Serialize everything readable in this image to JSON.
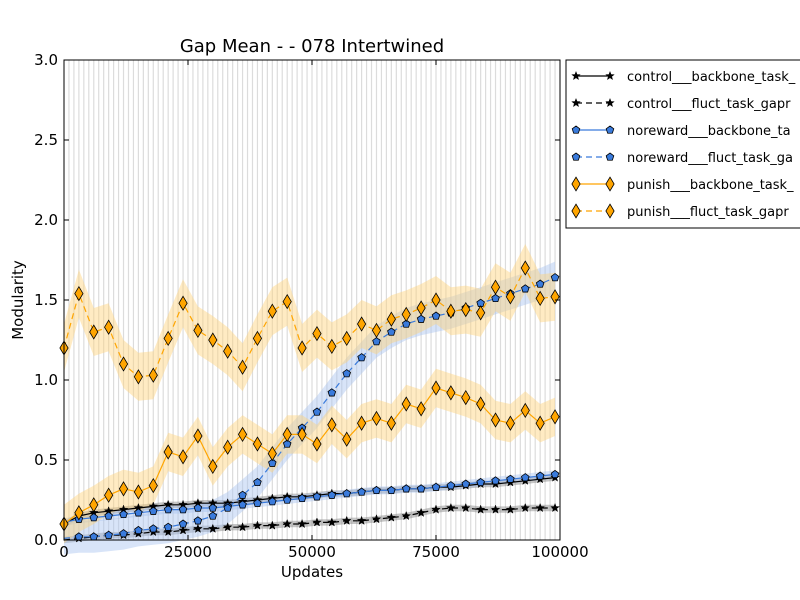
{
  "chart_data": {
    "type": "line",
    "title": "Gap Mean -  - 078 Intertwined",
    "xlabel": "Updates",
    "ylabel": "Modularity",
    "xlim": [
      0,
      100000
    ],
    "ylim": [
      0.0,
      3.0
    ],
    "x_ticks": [
      "0",
      "25000",
      "50000",
      "75000",
      "100000"
    ],
    "y_ticks": [
      "0.0",
      "0.5",
      "1.0",
      "1.5",
      "2.0",
      "2.5",
      "3.0"
    ],
    "grid": "vertical lines every 1000 updates",
    "legend_position": "outside-right-top",
    "x": [
      0,
      3000,
      6000,
      9000,
      12000,
      15000,
      18000,
      21000,
      24000,
      27000,
      30000,
      33000,
      36000,
      39000,
      42000,
      45000,
      48000,
      51000,
      54000,
      57000,
      60000,
      63000,
      66000,
      69000,
      72000,
      75000,
      78000,
      81000,
      84000,
      87000,
      90000,
      93000,
      96000,
      99000
    ],
    "series": [
      {
        "name": "control___backbone_task_",
        "color": "#000000",
        "band_color": "#808080",
        "marker": "star",
        "dash": "solid",
        "values": [
          0.1,
          0.15,
          0.17,
          0.18,
          0.19,
          0.2,
          0.21,
          0.22,
          0.22,
          0.23,
          0.23,
          0.23,
          0.24,
          0.25,
          0.26,
          0.27,
          0.27,
          0.28,
          0.29,
          0.29,
          0.3,
          0.31,
          0.31,
          0.32,
          0.32,
          0.33,
          0.33,
          0.34,
          0.35,
          0.35,
          0.36,
          0.37,
          0.38,
          0.39
        ],
        "band": 0.02
      },
      {
        "name": "control___fluct_task_gapr",
        "color": "#000000",
        "band_color": "#808080",
        "marker": "star",
        "dash": "dashed",
        "values": [
          0.0,
          0.01,
          0.02,
          0.03,
          0.03,
          0.04,
          0.05,
          0.05,
          0.06,
          0.07,
          0.07,
          0.08,
          0.08,
          0.09,
          0.09,
          0.1,
          0.1,
          0.11,
          0.11,
          0.12,
          0.12,
          0.13,
          0.14,
          0.15,
          0.17,
          0.19,
          0.2,
          0.2,
          0.19,
          0.19,
          0.19,
          0.2,
          0.2,
          0.2
        ],
        "band": 0.02
      },
      {
        "name": "noreward___backbone_ta",
        "color": "#3a7bdc",
        "band_color": "#a8c4f0",
        "marker": "pentagon",
        "dash": "solid",
        "values": [
          0.11,
          0.13,
          0.14,
          0.15,
          0.16,
          0.17,
          0.18,
          0.19,
          0.19,
          0.2,
          0.2,
          0.21,
          0.22,
          0.23,
          0.24,
          0.25,
          0.26,
          0.27,
          0.28,
          0.29,
          0.3,
          0.31,
          0.31,
          0.32,
          0.32,
          0.33,
          0.34,
          0.35,
          0.36,
          0.37,
          0.38,
          0.39,
          0.4,
          0.41
        ],
        "band": 0.025
      },
      {
        "name": "noreward___fluct_task_ga",
        "color": "#3a7bdc",
        "band_color": "#a8c4f0",
        "marker": "pentagon",
        "dash": "dashed",
        "values": [
          0.01,
          0.02,
          0.02,
          0.03,
          0.04,
          0.06,
          0.07,
          0.08,
          0.1,
          0.12,
          0.15,
          0.2,
          0.28,
          0.36,
          0.48,
          0.6,
          0.7,
          0.8,
          0.92,
          1.04,
          1.14,
          1.24,
          1.3,
          1.35,
          1.38,
          1.4,
          1.42,
          1.45,
          1.48,
          1.51,
          1.54,
          1.57,
          1.6,
          1.64
        ],
        "band": 0.1
      },
      {
        "name": "punish___backbone_task_",
        "color": "#ffa500",
        "band_color": "#ffd27a",
        "marker": "diamond",
        "dash": "solid",
        "values": [
          0.1,
          0.17,
          0.22,
          0.28,
          0.32,
          0.3,
          0.34,
          0.55,
          0.52,
          0.65,
          0.46,
          0.58,
          0.66,
          0.6,
          0.54,
          0.66,
          0.66,
          0.6,
          0.72,
          0.63,
          0.73,
          0.76,
          0.73,
          0.85,
          0.82,
          0.95,
          0.92,
          0.89,
          0.85,
          0.75,
          0.73,
          0.81,
          0.73,
          0.77
        ],
        "band": 0.12
      },
      {
        "name": "punish___fluct_task_gapr",
        "color": "#ffa500",
        "band_color": "#ffd27a",
        "marker": "diamond",
        "dash": "dashed",
        "values": [
          1.2,
          1.54,
          1.3,
          1.33,
          1.1,
          1.02,
          1.03,
          1.26,
          1.48,
          1.31,
          1.25,
          1.18,
          1.08,
          1.26,
          1.43,
          1.49,
          1.2,
          1.29,
          1.21,
          1.26,
          1.35,
          1.31,
          1.38,
          1.41,
          1.45,
          1.5,
          1.43,
          1.44,
          1.42,
          1.58,
          1.52,
          1.7,
          1.51,
          1.52
        ],
        "band": 0.15
      }
    ]
  }
}
